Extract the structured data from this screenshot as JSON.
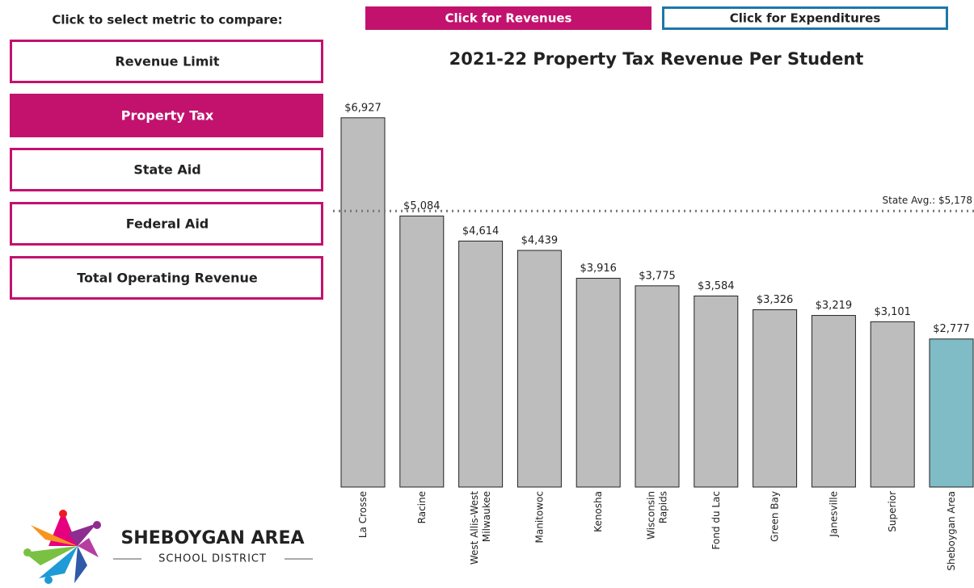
{
  "prompt": "Click to select metric to compare:",
  "tabs": [
    {
      "label": "Click for Revenues",
      "selected": true
    },
    {
      "label": "Click for Expenditures",
      "selected": false
    }
  ],
  "metrics": [
    {
      "label": "Revenue Limit",
      "selected": false
    },
    {
      "label": "Property Tax",
      "selected": true
    },
    {
      "label": "State Aid",
      "selected": false
    },
    {
      "label": "Federal Aid",
      "selected": false
    },
    {
      "label": "Total Operating Revenue",
      "selected": false
    }
  ],
  "logo": {
    "name": "SHEBOYGAN AREA",
    "subtitle": "SCHOOL DISTRICT"
  },
  "chart_data": {
    "type": "bar",
    "title": "2021-22 Property Tax Revenue Per Student",
    "categories": [
      "La Crosse",
      "Racine",
      "West Allis-West\nMilwaukee",
      "Manitowoc",
      "Kenosha",
      "Wisconsin\nRapids",
      "Fond du Lac",
      "Green Bay",
      "Janesville",
      "Superior",
      "Sheboygan Area"
    ],
    "values": [
      6927,
      5084,
      4614,
      4439,
      3916,
      3775,
      3584,
      3326,
      3219,
      3101,
      2777
    ],
    "value_labels": [
      "$6,927",
      "$5,084",
      "$4,614",
      "$4,439",
      "$3,916",
      "$3,775",
      "$3,584",
      "$3,326",
      "$3,219",
      "$3,101",
      "$2,777"
    ],
    "colors": [
      "#bdbdbe",
      "#bdbdbe",
      "#bdbdbe",
      "#bdbdbe",
      "#bdbdbe",
      "#bdbdbe",
      "#bdbdbe",
      "#bdbdbe",
      "#bdbdbe",
      "#bdbdbe",
      "#7fbcc6"
    ],
    "ylim": [
      0,
      7000
    ],
    "reference_line": {
      "value": 5178,
      "label": "State Avg.: $5,178"
    }
  }
}
